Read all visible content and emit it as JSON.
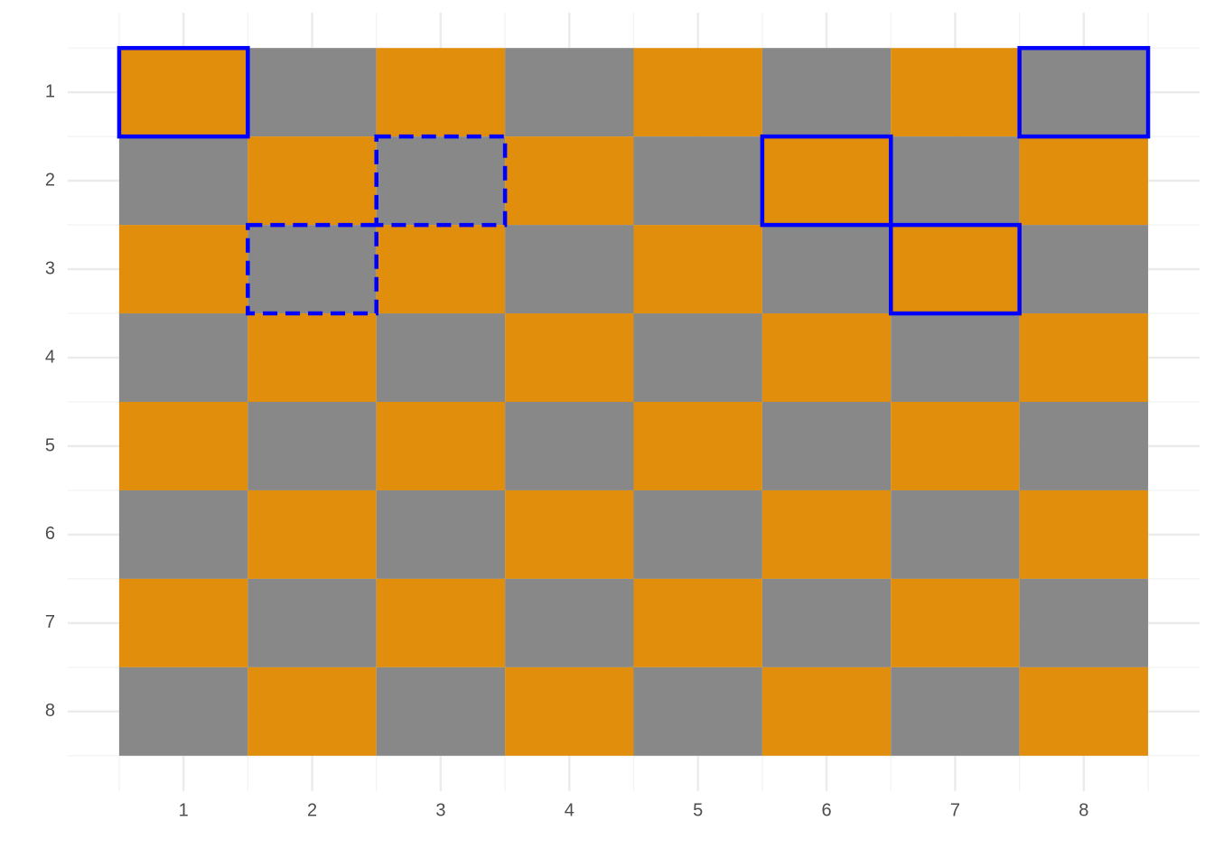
{
  "chart_data": {
    "type": "tile",
    "xlim": [
      0.1,
      8.9
    ],
    "ylim": [
      0.1,
      8.9
    ],
    "y_reversed": true,
    "xticks": [
      1,
      2,
      3,
      4,
      5,
      6,
      7,
      8
    ],
    "yticks": [
      1,
      2,
      3,
      4,
      5,
      6,
      7,
      8
    ],
    "xminor": [
      0.5,
      1.5,
      2.5,
      3.5,
      4.5,
      5.5,
      6.5,
      7.5,
      8.5
    ],
    "yminor": [
      0.5,
      1.5,
      2.5,
      3.5,
      4.5,
      5.5,
      6.5,
      7.5,
      8.5
    ],
    "grid": true,
    "tiles": {
      "x": [
        1,
        2,
        3,
        4,
        5,
        6,
        7,
        8,
        1,
        2,
        3,
        4,
        5,
        6,
        7,
        8,
        1,
        2,
        3,
        4,
        5,
        6,
        7,
        8,
        1,
        2,
        3,
        4,
        5,
        6,
        7,
        8,
        1,
        2,
        3,
        4,
        5,
        6,
        7,
        8,
        1,
        2,
        3,
        4,
        5,
        6,
        7,
        8,
        1,
        2,
        3,
        4,
        5,
        6,
        7,
        8,
        1,
        2,
        3,
        4,
        5,
        6,
        7,
        8
      ],
      "y": [
        1,
        1,
        1,
        1,
        1,
        1,
        1,
        1,
        2,
        2,
        2,
        2,
        2,
        2,
        2,
        2,
        3,
        3,
        3,
        3,
        3,
        3,
        3,
        3,
        4,
        4,
        4,
        4,
        4,
        4,
        4,
        4,
        5,
        5,
        5,
        5,
        5,
        5,
        5,
        5,
        6,
        6,
        6,
        6,
        6,
        6,
        6,
        6,
        7,
        7,
        7,
        7,
        7,
        7,
        7,
        7,
        8,
        8,
        8,
        8,
        8,
        8,
        8,
        8
      ],
      "fill": [
        "#E08E0B",
        "#888888",
        "#E08E0B",
        "#888888",
        "#E08E0B",
        "#888888",
        "#E08E0B",
        "#888888",
        "#888888",
        "#E08E0B",
        "#888888",
        "#E08E0B",
        "#888888",
        "#E08E0B",
        "#888888",
        "#E08E0B",
        "#E08E0B",
        "#888888",
        "#E08E0B",
        "#888888",
        "#E08E0B",
        "#888888",
        "#E08E0B",
        "#888888",
        "#888888",
        "#E08E0B",
        "#888888",
        "#E08E0B",
        "#888888",
        "#E08E0B",
        "#888888",
        "#E08E0B",
        "#E08E0B",
        "#888888",
        "#E08E0B",
        "#888888",
        "#E08E0B",
        "#888888",
        "#E08E0B",
        "#888888",
        "#888888",
        "#E08E0B",
        "#888888",
        "#E08E0B",
        "#888888",
        "#E08E0B",
        "#888888",
        "#E08E0B",
        "#E08E0B",
        "#888888",
        "#E08E0B",
        "#888888",
        "#E08E0B",
        "#888888",
        "#E08E0B",
        "#888888",
        "#888888",
        "#E08E0B",
        "#888888",
        "#E08E0B",
        "#888888",
        "#E08E0B",
        "#888888",
        "#E08E0B"
      ]
    },
    "highlight_color": "#0000FF",
    "highlights": [
      {
        "x": 1,
        "y": 1,
        "linetype": "solid"
      },
      {
        "x": 8,
        "y": 1,
        "linetype": "solid"
      },
      {
        "x": 6,
        "y": 2,
        "linetype": "solid"
      },
      {
        "x": 7,
        "y": 3,
        "linetype": "solid"
      },
      {
        "x": 3,
        "y": 2,
        "linetype": "dashed"
      },
      {
        "x": 2,
        "y": 3,
        "linetype": "dashed"
      }
    ]
  }
}
